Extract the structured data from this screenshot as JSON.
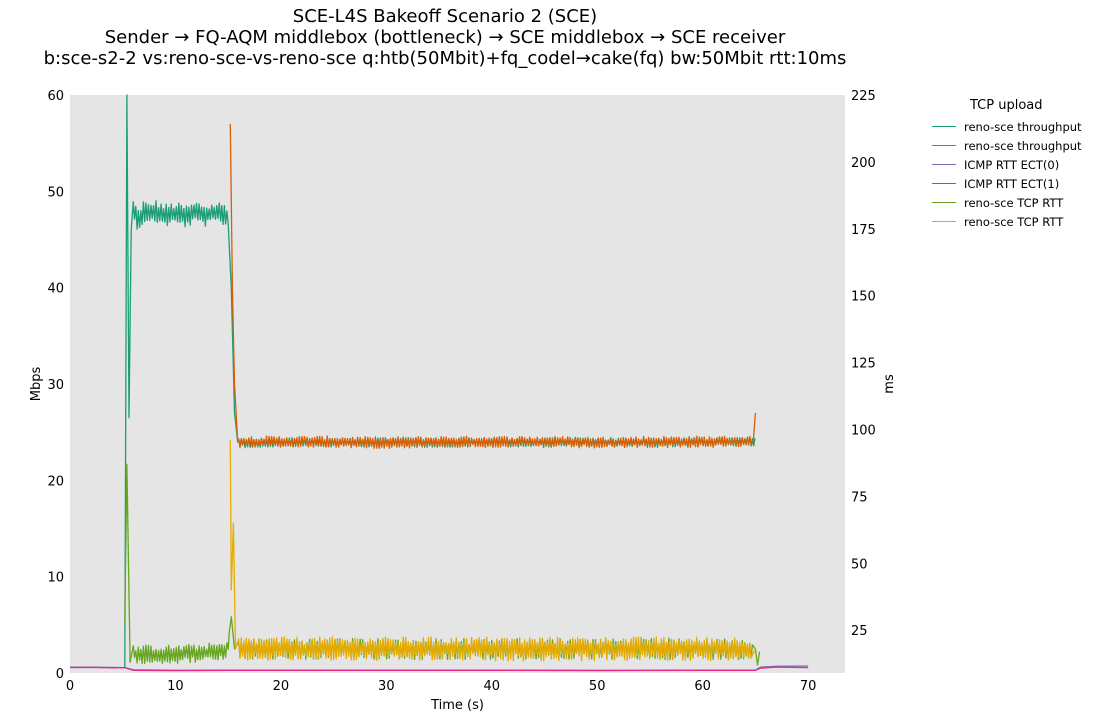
{
  "chart_data": {
    "type": "line",
    "title_lines": [
      "SCE-L4S Bakeoff Scenario 2 (SCE)",
      "Sender → FQ-AQM middlebox (bottleneck) → SCE middlebox → SCE receiver",
      "b:sce-s2-2 vs:reno-sce-vs-reno-sce q:htb(50Mbit)+fq_codel→cake(fq) bw:50Mbit rtt:10ms"
    ],
    "xlabel": "Time (s)",
    "ylabel_left": "Mbps",
    "ylabel_right": "ms",
    "xlim": [
      0,
      73.5
    ],
    "ylim_left": [
      0,
      60
    ],
    "ylim_right": [
      9,
      225
    ],
    "xticks": [
      0,
      10,
      20,
      30,
      40,
      50,
      60,
      70
    ],
    "yticks_left": [
      0,
      10,
      20,
      30,
      40,
      50,
      60
    ],
    "yticks_right": [
      25,
      50,
      75,
      100,
      125,
      150,
      175,
      200,
      225
    ],
    "background": "#e5e5e5",
    "grid": false,
    "legend": {
      "title": "TCP upload",
      "placement": "outside-right"
    },
    "series": [
      {
        "name": "reno-sce throughput",
        "axis": "left",
        "color": "#1b9e77",
        "points": [
          [
            5.2,
            0.5
          ],
          [
            5.4,
            60
          ],
          [
            5.6,
            26.5
          ],
          [
            5.8,
            46
          ],
          [
            6.0,
            48
          ],
          [
            6.5,
            47
          ],
          [
            7,
            48
          ],
          [
            7.5,
            47.5
          ],
          [
            8,
            48
          ],
          [
            9,
            47.5
          ],
          [
            10,
            47.7
          ],
          [
            11,
            47.4
          ],
          [
            12,
            47.8
          ],
          [
            13,
            47.5
          ],
          [
            14,
            47.8
          ],
          [
            15.0,
            47.5
          ],
          [
            15.3,
            40
          ],
          [
            15.6,
            27
          ],
          [
            15.9,
            24
          ],
          [
            17,
            23.8
          ],
          [
            20,
            24
          ],
          [
            25,
            23.9
          ],
          [
            30,
            24
          ],
          [
            35,
            23.9
          ],
          [
            40,
            24
          ],
          [
            45,
            23.9
          ],
          [
            50,
            24
          ],
          [
            55,
            23.9
          ],
          [
            60,
            24
          ],
          [
            65,
            24
          ]
        ],
        "jitter": [
          [
            6,
            15,
            1.2
          ],
          [
            16,
            65,
            0.5
          ]
        ]
      },
      {
        "name": "reno-sce throughput",
        "axis": "left",
        "color": "#d95f02",
        "points": [
          [
            15.2,
            57
          ],
          [
            15.4,
            40
          ],
          [
            15.6,
            30
          ],
          [
            15.9,
            24
          ],
          [
            17,
            24
          ],
          [
            20,
            24
          ],
          [
            25,
            24
          ],
          [
            30,
            23.9
          ],
          [
            35,
            24
          ],
          [
            40,
            24
          ],
          [
            45,
            24
          ],
          [
            50,
            23.9
          ],
          [
            55,
            24
          ],
          [
            60,
            24
          ],
          [
            64.8,
            24
          ],
          [
            65.0,
            27
          ]
        ],
        "jitter": [
          [
            16,
            64.7,
            0.6
          ]
        ]
      },
      {
        "name": "ICMP RTT ECT(0)",
        "axis": "right",
        "color": "#7570b3",
        "points": [
          [
            0,
            11.2
          ],
          [
            2,
            11.2
          ],
          [
            4,
            11.1
          ],
          [
            5.2,
            11.0
          ],
          [
            6,
            10.2
          ],
          [
            10,
            10.0
          ],
          [
            15,
            10.1
          ],
          [
            20,
            10.1
          ],
          [
            30,
            10.1
          ],
          [
            40,
            10.1
          ],
          [
            50,
            10.0
          ],
          [
            60,
            10.1
          ],
          [
            65,
            10.1
          ],
          [
            65.5,
            11.2
          ],
          [
            67,
            11.5
          ],
          [
            70,
            11.6
          ]
        ],
        "jitter": []
      },
      {
        "name": "ICMP RTT ECT(1)",
        "axis": "right",
        "color": "#e7298a",
        "points": [
          [
            0,
            11.0
          ],
          [
            2,
            11.1
          ],
          [
            4,
            10.9
          ],
          [
            5.2,
            11.0
          ],
          [
            6,
            10.0
          ],
          [
            10,
            9.9
          ],
          [
            15,
            10.0
          ],
          [
            20,
            10.0
          ],
          [
            30,
            10.0
          ],
          [
            40,
            10.0
          ],
          [
            50,
            9.9
          ],
          [
            60,
            10.0
          ],
          [
            65,
            10.0
          ],
          [
            65.5,
            10.8
          ],
          [
            67,
            11.2
          ],
          [
            70,
            11.0
          ]
        ],
        "jitter": []
      },
      {
        "name": "reno-sce TCP RTT",
        "axis": "right",
        "color": "#66a61e",
        "points": [
          [
            5.2,
            28
          ],
          [
            5.4,
            87
          ],
          [
            5.7,
            13
          ],
          [
            6,
            16
          ],
          [
            10,
            16
          ],
          [
            14.9,
            17
          ],
          [
            15.1,
            24
          ],
          [
            15.3,
            30
          ],
          [
            15.6,
            18
          ],
          [
            20,
            18
          ],
          [
            30,
            18
          ],
          [
            40,
            18
          ],
          [
            50,
            18
          ],
          [
            60,
            18
          ],
          [
            65,
            18
          ],
          [
            65.2,
            12
          ],
          [
            65.4,
            17
          ]
        ],
        "jitter": [
          [
            6,
            15,
            3.5
          ],
          [
            16,
            64.8,
            4
          ]
        ]
      },
      {
        "name": "reno-sce TCP RTT",
        "axis": "right",
        "color": "#e6ab02",
        "points": [
          [
            15.2,
            96
          ],
          [
            15.3,
            40
          ],
          [
            15.5,
            65
          ],
          [
            15.7,
            18
          ],
          [
            20,
            18
          ],
          [
            30,
            18
          ],
          [
            40,
            18
          ],
          [
            50,
            18
          ],
          [
            60,
            18
          ],
          [
            64.7,
            18
          ],
          [
            65,
            18
          ]
        ],
        "jitter": [
          [
            16,
            64.7,
            4.5
          ]
        ]
      }
    ]
  }
}
